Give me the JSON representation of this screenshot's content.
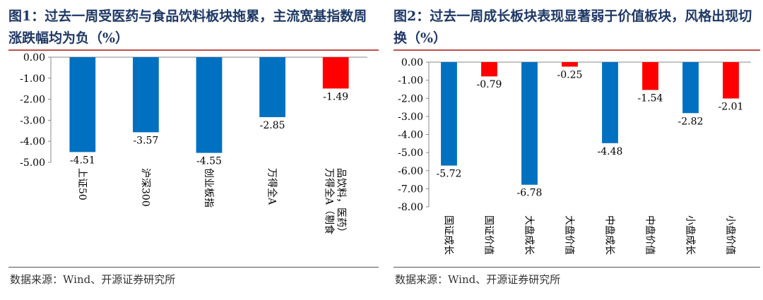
{
  "left": {
    "title": "图1：过去一周受医药与食品饮料板块拖累，主流宽基指数周涨跌幅均为负（%）",
    "source": "数据来源：Wind、开源证券研究所",
    "chart_data": {
      "type": "bar",
      "categories": [
        "上证50",
        "沪深300",
        "创业板指",
        "万得全A",
        "万得全A（剔食品饮料，医药）"
      ],
      "values": [
        -4.51,
        -3.57,
        -4.55,
        -2.85,
        -1.49
      ],
      "value_labels": [
        "-4.51",
        "-3.57",
        "-4.55",
        "-2.85",
        "-1.49"
      ],
      "bar_colors": [
        "#0070c0",
        "#0070c0",
        "#0070c0",
        "#0070c0",
        "#ff0000"
      ],
      "ylim": [
        -5,
        0
      ],
      "yticks": [
        "0.00",
        "-1.00",
        "-2.00",
        "-3.00",
        "-4.00",
        "-5.00"
      ],
      "ytick_values": [
        0,
        -1,
        -2,
        -3,
        -4,
        -5
      ],
      "grid": false,
      "legend": "none"
    }
  },
  "right": {
    "title": "图2：过去一周成长板块表现显著弱于价值板块，风格出现切换（%）",
    "source": "数据来源：Wind、开源证券研究所",
    "chart_data": {
      "type": "bar",
      "categories": [
        "国证成长",
        "国证价值",
        "大盘成长",
        "大盘价值",
        "中盘成长",
        "中盘价值",
        "小盘成长",
        "小盘价值"
      ],
      "values": [
        -5.72,
        -0.79,
        -6.78,
        -0.25,
        -4.48,
        -1.54,
        -2.82,
        -2.01
      ],
      "value_labels": [
        "-5.72",
        "-0.79",
        "-6.78",
        "-0.25",
        "-4.48",
        "-1.54",
        "-2.82",
        "-2.01"
      ],
      "bar_colors": [
        "#0070c0",
        "#ff0000",
        "#0070c0",
        "#ff0000",
        "#0070c0",
        "#ff0000",
        "#0070c0",
        "#ff0000"
      ],
      "ylim": [
        -8,
        0
      ],
      "yticks": [
        "0.00",
        "-1.00",
        "-2.00",
        "-3.00",
        "-4.00",
        "-5.00",
        "-6.00",
        "-7.00",
        "-8.00"
      ],
      "ytick_values": [
        0,
        -1,
        -2,
        -3,
        -4,
        -5,
        -6,
        -7,
        -8
      ],
      "grid": false,
      "legend": "none"
    }
  }
}
